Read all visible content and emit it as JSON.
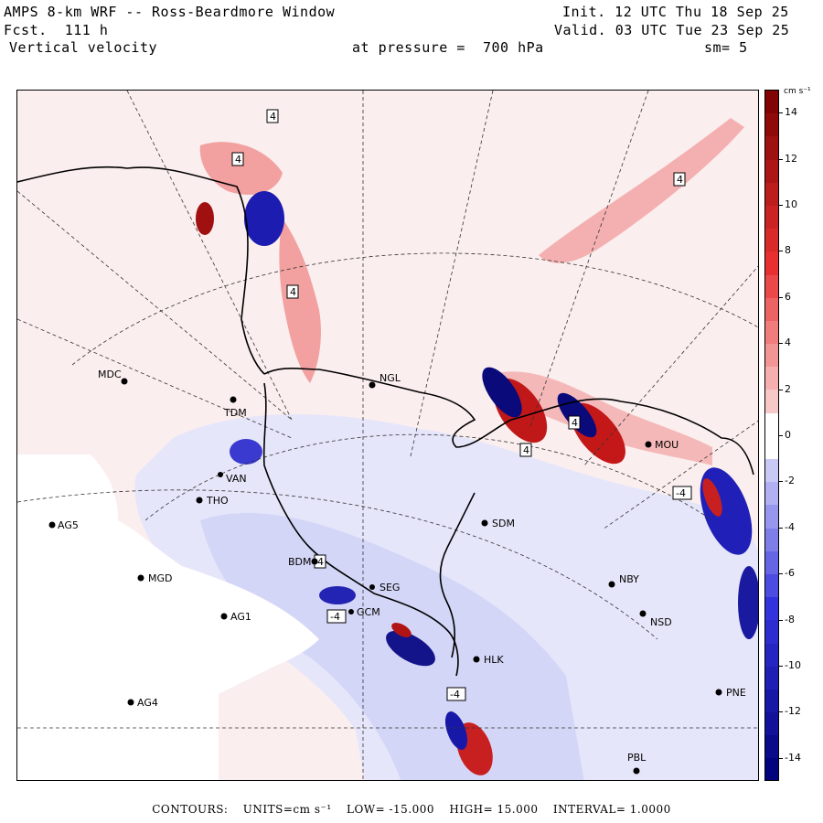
{
  "header": {
    "title": "AMPS 8-km WRF -- Ross-Beardmore Window",
    "forecast": "Fcst.  111 h",
    "field": "Vertical velocity",
    "pressure": "at pressure =  700 hPa",
    "init": "Init. 12 UTC Thu 18 Sep 25",
    "valid": "Valid. 03 UTC Tue 23 Sep 25",
    "smoothing": "sm= 5"
  },
  "colorbar": {
    "units": "cm s⁻¹",
    "labels": [
      "14",
      "12",
      "10",
      "8",
      "6",
      "4",
      "2",
      "0",
      "-2",
      "-4",
      "-6",
      "-8",
      "-10",
      "-12",
      "-14"
    ],
    "values": [
      14,
      12,
      10,
      8,
      6,
      4,
      2,
      0,
      -2,
      -4,
      -6,
      -8,
      -10,
      -12,
      -14
    ],
    "range": [
      -15,
      15
    ],
    "colors": {
      "high": "#7a0000",
      "mid_high": "#e83030",
      "low_high": "#fbeeee",
      "zero": "#ffffff",
      "low_low": "#eeeefc",
      "mid_low": "#3333dd",
      "low": "#000077"
    }
  },
  "stations": [
    {
      "id": "MDC",
      "label": "MDC"
    },
    {
      "id": "TDM",
      "label": "TDM"
    },
    {
      "id": "NGL",
      "label": "NGL"
    },
    {
      "id": "MOU",
      "label": "MOU"
    },
    {
      "id": "THO",
      "label": "THO"
    },
    {
      "id": "VAN",
      "label": "VAN"
    },
    {
      "id": "AG5",
      "label": "AG5"
    },
    {
      "id": "SDM",
      "label": "SDM"
    },
    {
      "id": "BDM",
      "label": "BDM"
    },
    {
      "id": "MGD",
      "label": "MGD"
    },
    {
      "id": "SEG",
      "label": "SEG"
    },
    {
      "id": "NBY",
      "label": "NBY"
    },
    {
      "id": "AG1",
      "label": "AG1"
    },
    {
      "id": "GCM",
      "label": "GCM"
    },
    {
      "id": "NSD",
      "label": "NSD"
    },
    {
      "id": "HLK",
      "label": "HLK"
    },
    {
      "id": "AG4",
      "label": "AG4"
    },
    {
      "id": "PNE",
      "label": "PNE"
    },
    {
      "id": "PBL",
      "label": "PBL"
    }
  ],
  "contour_labels": [
    "4",
    "4",
    "4",
    "4",
    "4",
    "4",
    "4",
    "-4",
    "-4",
    "-4"
  ],
  "footer": {
    "contours": "CONTOURS:",
    "units": "UNITS=cm s⁻¹",
    "low": "LOW= -15.000",
    "high": "HIGH= 15.000",
    "interval": "INTERVAL= 1.0000"
  }
}
